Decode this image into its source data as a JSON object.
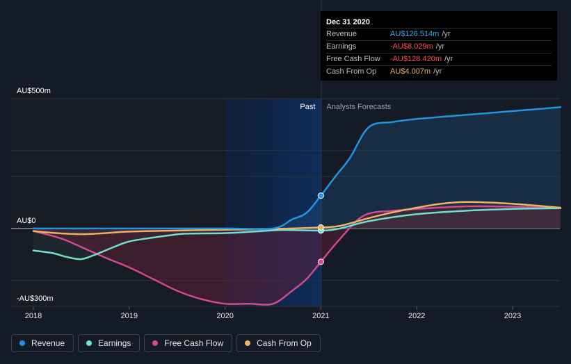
{
  "colors": {
    "background": "#151b26",
    "revenue": "#2394e0",
    "earnings": "#6fdfd0",
    "fcf": "#d04a8f",
    "cfo": "#eab467",
    "negative": "#ff4d4d"
  },
  "tooltip": {
    "date": "Dec 31 2020",
    "rows": [
      {
        "label": "Revenue",
        "value": "AU$126.514m",
        "unit": "/yr",
        "color": "#3ba7f0"
      },
      {
        "label": "Earnings",
        "value": "-AU$8.029m",
        "unit": "/yr",
        "color": "#ff4d4d"
      },
      {
        "label": "Free Cash Flow",
        "value": "-AU$128.420m",
        "unit": "/yr",
        "color": "#ff4d4d"
      },
      {
        "label": "Cash From Op",
        "value": "AU$4.007m",
        "unit": "/yr",
        "color": "#eab467"
      }
    ]
  },
  "legend": [
    {
      "label": "Revenue",
      "color": "#2394e0"
    },
    {
      "label": "Earnings",
      "color": "#6fdfd0"
    },
    {
      "label": "Free Cash Flow",
      "color": "#d04a8f"
    },
    {
      "label": "Cash From Op",
      "color": "#eab467"
    }
  ],
  "chart_data": {
    "type": "line",
    "ylim": [
      -300,
      500
    ],
    "y_tick_labels": [
      {
        "value": 500,
        "label": "AU$500m"
      },
      {
        "value": 0,
        "label": "AU$0"
      },
      {
        "value": -300,
        "label": "-AU$300m"
      }
    ],
    "xlim": [
      2018,
      2023.5
    ],
    "x_tick_labels": [
      "2018",
      "2019",
      "2020",
      "2021",
      "2022",
      "2023"
    ],
    "divider_x": 2021,
    "past_label": "Past",
    "forecast_label": "Analysts Forecasts",
    "highlight_range": [
      2020,
      2021
    ],
    "grid": true,
    "series": [
      {
        "name": "Revenue",
        "color": "#2394e0",
        "points": [
          [
            2018,
            0
          ],
          [
            2019,
            0
          ],
          [
            2020,
            0
          ],
          [
            2020.5,
            0
          ],
          [
            2020.7,
            35
          ],
          [
            2020.85,
            60
          ],
          [
            2021,
            126.5
          ],
          [
            2021.15,
            200
          ],
          [
            2021.3,
            270
          ],
          [
            2021.5,
            390
          ],
          [
            2021.75,
            410
          ],
          [
            2022,
            422
          ],
          [
            2022.5,
            437
          ],
          [
            2023,
            452
          ],
          [
            2023.5,
            467
          ]
        ],
        "marker": [
          2021,
          126.5
        ]
      },
      {
        "name": "Earnings",
        "color": "#6fdfd0",
        "points": [
          [
            2018,
            -85
          ],
          [
            2018.2,
            -95
          ],
          [
            2018.35,
            -110
          ],
          [
            2018.5,
            -118
          ],
          [
            2018.65,
            -100
          ],
          [
            2018.85,
            -70
          ],
          [
            2019,
            -50
          ],
          [
            2019.25,
            -35
          ],
          [
            2019.45,
            -25
          ],
          [
            2019.6,
            -20
          ],
          [
            2020,
            -18
          ],
          [
            2020.3,
            -12
          ],
          [
            2020.6,
            -6
          ],
          [
            2021,
            -8
          ],
          [
            2021.2,
            0
          ],
          [
            2021.5,
            28
          ],
          [
            2022,
            55
          ],
          [
            2022.5,
            68
          ],
          [
            2023,
            75
          ],
          [
            2023.5,
            78
          ]
        ],
        "marker": [
          2021,
          -8
        ]
      },
      {
        "name": "Free Cash Flow",
        "color": "#d04a8f",
        "points": [
          [
            2018,
            -10
          ],
          [
            2018.3,
            -40
          ],
          [
            2018.55,
            -80
          ],
          [
            2018.8,
            -120
          ],
          [
            2019,
            -150
          ],
          [
            2019.25,
            -195
          ],
          [
            2019.5,
            -240
          ],
          [
            2019.75,
            -272
          ],
          [
            2020,
            -290
          ],
          [
            2020.25,
            -290
          ],
          [
            2020.5,
            -290
          ],
          [
            2020.7,
            -240
          ],
          [
            2020.85,
            -195
          ],
          [
            2021,
            -128.4
          ],
          [
            2021.2,
            -40
          ],
          [
            2021.45,
            50
          ],
          [
            2021.75,
            68
          ],
          [
            2022,
            75
          ],
          [
            2022.5,
            85
          ],
          [
            2023,
            84
          ],
          [
            2023.5,
            80
          ]
        ],
        "marker": [
          2021,
          -128.4
        ]
      },
      {
        "name": "Cash From Op",
        "color": "#eab467",
        "points": [
          [
            2018,
            -10
          ],
          [
            2018.25,
            -18
          ],
          [
            2018.5,
            -22
          ],
          [
            2018.75,
            -18
          ],
          [
            2019,
            -12
          ],
          [
            2019.5,
            -8
          ],
          [
            2020,
            -5
          ],
          [
            2020.5,
            -2
          ],
          [
            2021,
            4
          ],
          [
            2021.2,
            10
          ],
          [
            2021.5,
            40
          ],
          [
            2021.75,
            62
          ],
          [
            2022,
            80
          ],
          [
            2022.25,
            95
          ],
          [
            2022.5,
            102
          ],
          [
            2022.75,
            100
          ],
          [
            2023,
            95
          ],
          [
            2023.25,
            88
          ],
          [
            2023.5,
            80
          ]
        ],
        "marker": [
          2021,
          4
        ]
      }
    ]
  }
}
